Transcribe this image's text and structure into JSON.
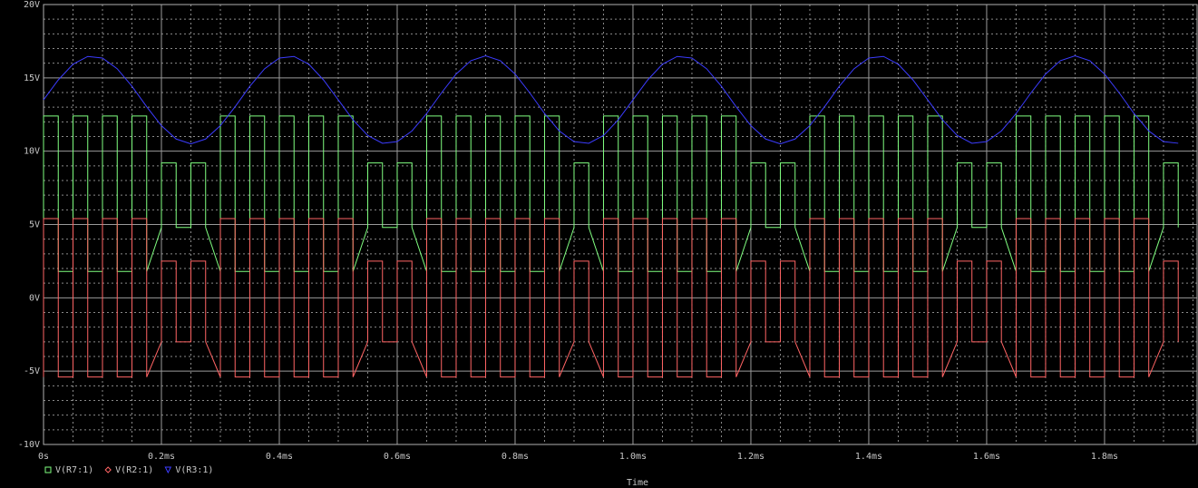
{
  "chart_data": {
    "type": "line",
    "xlabel": "Time",
    "grid": true,
    "xlim": [
      0,
      1.957
    ],
    "ylim": [
      -10,
      20
    ],
    "xticks": [
      {
        "value": 0,
        "label": "0s"
      },
      {
        "value": 0.2,
        "label": "0.2ms"
      },
      {
        "value": 0.4,
        "label": "0.4ms"
      },
      {
        "value": 0.6,
        "label": "0.6ms"
      },
      {
        "value": 0.8,
        "label": "0.8ms"
      },
      {
        "value": 1.0,
        "label": "1.0ms"
      },
      {
        "value": 1.2,
        "label": "1.2ms"
      },
      {
        "value": 1.4,
        "label": "1.4ms"
      },
      {
        "value": 1.6,
        "label": "1.6ms"
      },
      {
        "value": 1.8,
        "label": "1.8ms"
      }
    ],
    "yticks": [
      {
        "value": -10,
        "label": "-10V"
      },
      {
        "value": -5,
        "label": "-5V"
      },
      {
        "value": 0,
        "label": "0V"
      },
      {
        "value": 5,
        "label": "5V"
      },
      {
        "value": 10,
        "label": "10V"
      },
      {
        "value": 15,
        "label": "15V"
      },
      {
        "value": 20,
        "label": "20V"
      }
    ],
    "x": [
      0,
      0,
      0.025,
      0.025,
      0.05,
      0.05,
      0.075,
      0.075,
      0.1,
      0.1,
      0.125,
      0.125,
      0.15,
      0.15,
      0.175,
      0.175,
      0.2,
      0.2,
      0.225,
      0.225,
      0.25,
      0.25,
      0.275,
      0.275,
      0.3,
      0.3,
      0.325,
      0.325,
      0.35,
      0.35,
      0.375,
      0.375,
      0.4,
      0.4,
      0.425,
      0.425,
      0.45,
      0.45,
      0.475,
      0.475,
      0.5,
      0.5,
      0.525,
      0.525,
      0.55,
      0.55,
      0.575,
      0.575,
      0.6,
      0.6,
      0.625,
      0.625,
      0.65,
      0.65,
      0.675,
      0.675,
      0.7,
      0.7,
      0.725,
      0.725,
      0.75,
      0.75,
      0.775,
      0.775,
      0.8,
      0.8,
      0.825,
      0.825,
      0.85,
      0.85,
      0.875,
      0.875,
      0.9,
      0.9,
      0.925,
      0.925,
      0.95,
      0.95,
      0.975,
      0.975,
      1.0,
      1.0,
      1.025,
      1.025,
      1.05,
      1.05,
      1.075,
      1.075,
      1.1,
      1.1,
      1.125,
      1.125,
      1.15,
      1.15,
      1.175,
      1.175,
      1.2,
      1.2,
      1.225,
      1.225,
      1.25,
      1.25,
      1.275,
      1.275,
      1.3,
      1.3,
      1.325,
      1.325,
      1.35,
      1.35,
      1.375,
      1.375,
      1.4,
      1.4,
      1.425,
      1.425,
      1.45,
      1.45,
      1.475,
      1.475,
      1.5,
      1.5,
      1.525,
      1.525,
      1.55,
      1.55,
      1.575,
      1.575,
      1.6,
      1.6,
      1.625,
      1.625,
      1.65,
      1.65,
      1.675,
      1.675,
      1.7,
      1.7,
      1.725,
      1.725,
      1.75,
      1.75,
      1.775,
      1.775,
      1.8,
      1.8,
      1.825,
      1.825,
      1.85,
      1.85,
      1.875,
      1.875,
      1.9,
      1.9,
      1.925,
      1.925
    ],
    "series": [
      {
        "name": "V(R7:1)",
        "color": "#80ff80",
        "marker": "square",
        "values": [
          1.8,
          12.4,
          12.4,
          1.8,
          1.8,
          12.4,
          12.4,
          1.8,
          1.8,
          12.4,
          12.4,
          1.8,
          1.8,
          12.4,
          12.4,
          1.8,
          4.8,
          9.2,
          9.2,
          4.8,
          4.8,
          9.2,
          9.2,
          4.8,
          1.8,
          12.4,
          12.4,
          1.8,
          1.8,
          12.4,
          12.4,
          1.8,
          1.8,
          12.4,
          12.4,
          1.8,
          1.8,
          12.4,
          12.4,
          1.8,
          1.8,
          12.4,
          12.4,
          1.8,
          4.8,
          9.2,
          9.2,
          4.8,
          4.8,
          9.2,
          9.2,
          4.8,
          1.8,
          12.4,
          12.4,
          1.8,
          1.8,
          12.4,
          12.4,
          1.8,
          1.8,
          12.4,
          12.4,
          1.8,
          1.8,
          12.4,
          12.4,
          1.8,
          1.8,
          12.4,
          12.4,
          1.8,
          4.8,
          9.2,
          9.2,
          4.8,
          1.8,
          12.4,
          12.4,
          1.8,
          1.8,
          12.4,
          12.4,
          1.8,
          1.8,
          12.4,
          12.4,
          1.8,
          1.8,
          12.4,
          12.4,
          1.8,
          1.8,
          12.4,
          12.4,
          1.8,
          4.8,
          9.2,
          9.2,
          4.8,
          4.8,
          9.2,
          9.2,
          4.8,
          1.8,
          12.4,
          12.4,
          1.8,
          1.8,
          12.4,
          12.4,
          1.8,
          1.8,
          12.4,
          12.4,
          1.8,
          1.8,
          12.4,
          12.4,
          1.8,
          1.8,
          12.4,
          12.4,
          1.8,
          4.8,
          9.2,
          9.2,
          4.8,
          4.8,
          9.2,
          9.2,
          4.8,
          1.8,
          12.4,
          12.4,
          1.8,
          1.8,
          12.4,
          12.4,
          1.8,
          1.8,
          12.4,
          12.4,
          1.8,
          1.8,
          12.4,
          12.4,
          1.8,
          1.8,
          12.4,
          12.4,
          1.8,
          4.8,
          9.2,
          9.2,
          4.8
        ]
      },
      {
        "name": "V(R2:1)",
        "color": "#ff6464",
        "marker": "diamond",
        "values": [
          -5.4,
          5.4,
          5.4,
          -5.4,
          -5.4,
          5.4,
          5.4,
          -5.4,
          -5.4,
          5.4,
          5.4,
          -5.4,
          -5.4,
          5.4,
          5.4,
          -5.4,
          -3,
          2.5,
          2.5,
          -3,
          -3,
          2.5,
          2.5,
          -3,
          -5.4,
          5.4,
          5.4,
          -5.4,
          -5.4,
          5.4,
          5.4,
          -5.4,
          -5.4,
          5.4,
          5.4,
          -5.4,
          -5.4,
          5.4,
          5.4,
          -5.4,
          -5.4,
          5.4,
          5.4,
          -5.4,
          -3,
          2.5,
          2.5,
          -3,
          -3,
          2.5,
          2.5,
          -3,
          -5.4,
          5.4,
          5.4,
          -5.4,
          -5.4,
          5.4,
          5.4,
          -5.4,
          -5.4,
          5.4,
          5.4,
          -5.4,
          -5.4,
          5.4,
          5.4,
          -5.4,
          -5.4,
          5.4,
          5.4,
          -5.4,
          -3,
          2.5,
          2.5,
          -3,
          -5.4,
          5.4,
          5.4,
          -5.4,
          -5.4,
          5.4,
          5.4,
          -5.4,
          -5.4,
          5.4,
          5.4,
          -5.4,
          -5.4,
          5.4,
          5.4,
          -5.4,
          -5.4,
          5.4,
          5.4,
          -5.4,
          -3,
          2.5,
          2.5,
          -3,
          -3,
          2.5,
          2.5,
          -3,
          -5.4,
          5.4,
          5.4,
          -5.4,
          -5.4,
          5.4,
          5.4,
          -5.4,
          -5.4,
          5.4,
          5.4,
          -5.4,
          -5.4,
          5.4,
          5.4,
          -5.4,
          -5.4,
          5.4,
          5.4,
          -5.4,
          -3,
          2.5,
          2.5,
          -3,
          -3,
          2.5,
          2.5,
          -3,
          -5.4,
          5.4,
          5.4,
          -5.4,
          -5.4,
          5.4,
          5.4,
          -5.4,
          -5.4,
          5.4,
          5.4,
          -5.4,
          -5.4,
          5.4,
          5.4,
          -5.4,
          -5.4,
          5.4,
          5.4,
          -5.4,
          -3,
          2.5,
          2.5,
          -3
        ]
      },
      {
        "name": "V(R3:1)",
        "color": "#3c3cff",
        "marker": "triangle",
        "values": [
          13.5,
          13.5,
          14.86,
          14.86,
          15.93,
          15.93,
          16.46,
          16.46,
          16.35,
          16.35,
          15.62,
          15.62,
          14.43,
          14.43,
          13.03,
          13.03,
          11.74,
          11.74,
          10.83,
          10.83,
          10.5,
          10.5,
          10.83,
          10.83,
          11.74,
          11.74,
          13.03,
          13.03,
          14.43,
          14.43,
          15.62,
          15.62,
          16.35,
          16.35,
          16.46,
          16.46,
          15.93,
          15.93,
          14.86,
          14.86,
          13.5,
          13.5,
          12.14,
          12.14,
          11.07,
          11.07,
          10.54,
          10.54,
          10.65,
          10.65,
          11.38,
          11.38,
          12.57,
          12.57,
          13.97,
          13.97,
          15.26,
          15.26,
          16.17,
          16.17,
          16.5,
          16.5,
          16.17,
          16.17,
          15.26,
          15.26,
          13.97,
          13.97,
          12.57,
          12.57,
          11.38,
          11.38,
          10.65,
          10.65,
          10.54,
          10.54,
          11.07,
          11.07,
          12.14,
          12.14,
          13.5,
          13.5,
          14.86,
          14.86,
          15.93,
          15.93,
          16.46,
          16.46,
          16.35,
          16.35,
          15.62,
          15.62,
          14.43,
          14.43,
          13.03,
          13.03,
          11.74,
          11.74,
          10.83,
          10.83,
          10.5,
          10.5,
          10.83,
          10.83,
          11.74,
          11.74,
          13.03,
          13.03,
          14.43,
          14.43,
          15.62,
          15.62,
          16.35,
          16.35,
          16.46,
          16.46,
          15.93,
          15.93,
          14.86,
          14.86,
          13.5,
          13.5,
          12.14,
          12.14,
          11.07,
          11.07,
          10.54,
          10.54,
          10.65,
          10.65,
          11.38,
          11.38,
          12.57,
          12.57,
          13.97,
          13.97,
          15.26,
          15.26,
          16.17,
          16.17,
          16.5,
          16.5,
          16.17,
          16.17,
          15.26,
          15.26,
          13.97,
          13.97,
          12.57,
          12.57,
          11.38,
          11.38,
          10.65,
          10.65,
          10.54,
          10.54
        ]
      }
    ]
  }
}
